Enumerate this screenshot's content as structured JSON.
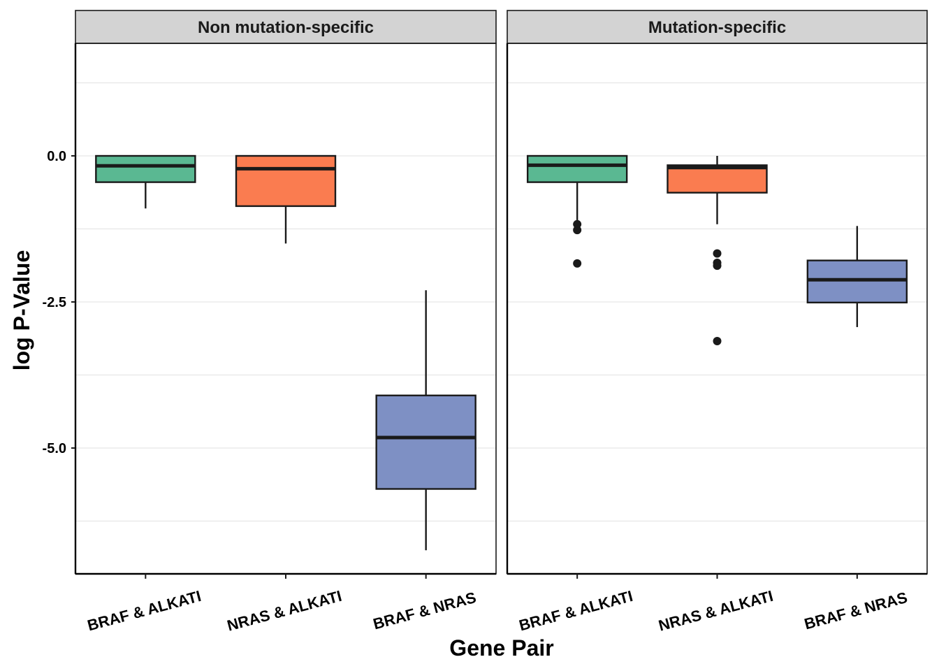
{
  "chart_data": {
    "type": "boxplot",
    "title": "",
    "xlabel": "Gene Pair",
    "ylabel": "log P-Value",
    "ylim": [
      -7.1,
      1.9
    ],
    "y_ticks": [
      0.0,
      -2.5,
      -5.0
    ],
    "y_tick_labels": [
      "0.0",
      "-2.5",
      "-5.0"
    ],
    "grid": true,
    "legend": "none",
    "categories": [
      "BRAF & ALKATI",
      "NRAS & ALKATI",
      "BRAF & NRAS"
    ],
    "colors": [
      "#5ab892",
      "#fa7c50",
      "#7e90c4"
    ],
    "panels": [
      {
        "name": "Non mutation-specific",
        "boxes": [
          {
            "category": "BRAF & ALKATI",
            "min": -0.9,
            "q1": -0.45,
            "median": -0.17,
            "q3": 0.0,
            "max": 0.0,
            "outliers": []
          },
          {
            "category": "NRAS & ALKATI",
            "min": -1.5,
            "q1": -0.86,
            "median": -0.22,
            "q3": 0.0,
            "max": 0.0,
            "outliers": []
          },
          {
            "category": "BRAF & NRAS",
            "min": -6.75,
            "q1": -5.7,
            "median": -4.82,
            "q3": -4.1,
            "max": -2.3,
            "outliers": []
          }
        ]
      },
      {
        "name": "Mutation-specific",
        "boxes": [
          {
            "category": "BRAF & ALKATI",
            "min": -1.1,
            "q1": -0.45,
            "median": -0.16,
            "q3": 0.0,
            "max": 0.0,
            "outliers": [
              -1.17,
              -1.27,
              -1.84
            ]
          },
          {
            "category": "NRAS & ALKATI",
            "min": -1.17,
            "q1": -0.63,
            "median": -0.2,
            "q3": -0.16,
            "max": 0.0,
            "outliers": [
              -1.67,
              -1.83,
              -1.88,
              -3.17
            ]
          },
          {
            "category": "BRAF & NRAS",
            "min": -2.93,
            "q1": -2.51,
            "median": -2.12,
            "q3": -1.79,
            "max": -1.2,
            "outliers": []
          }
        ]
      }
    ]
  }
}
